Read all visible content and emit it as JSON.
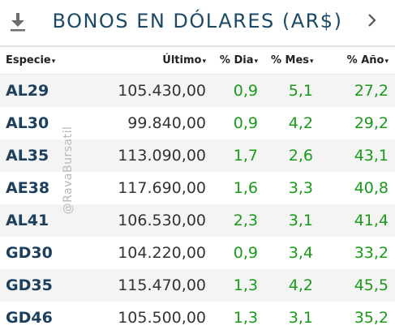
{
  "header": {
    "title": "BONOS EN DÓLARES (AR$)",
    "download_icon": "download-icon",
    "next_icon": "chevron-right-icon"
  },
  "table": {
    "columns": [
      {
        "label": "Especie",
        "sort_glyph": "▾"
      },
      {
        "label": "Último",
        "sort_glyph": "▾"
      },
      {
        "label": "% Dia",
        "sort_glyph": "▾"
      },
      {
        "label": "% Mes",
        "sort_glyph": "▾"
      },
      {
        "label": "% Año",
        "sort_glyph": "▾"
      }
    ],
    "rows": [
      {
        "ticker": "AL29",
        "last": "105.430,00",
        "day": "0,9",
        "month": "5,1",
        "year": "27,2"
      },
      {
        "ticker": "AL30",
        "last": "99.840,00",
        "day": "0,9",
        "month": "4,2",
        "year": "29,2"
      },
      {
        "ticker": "AL35",
        "last": "113.090,00",
        "day": "1,7",
        "month": "2,6",
        "year": "43,1"
      },
      {
        "ticker": "AE38",
        "last": "117.690,00",
        "day": "1,6",
        "month": "3,3",
        "year": "40,8"
      },
      {
        "ticker": "AL41",
        "last": "106.530,00",
        "day": "2,3",
        "month": "3,1",
        "year": "41,4"
      },
      {
        "ticker": "GD30",
        "last": "104.220,00",
        "day": "0,9",
        "month": "3,4",
        "year": "33,2"
      },
      {
        "ticker": "GD35",
        "last": "115.470,00",
        "day": "1,3",
        "month": "4,2",
        "year": "45,5"
      },
      {
        "ticker": "GD46",
        "last": "105.500,00",
        "day": "1,3",
        "month": "3,1",
        "year": "35,2"
      }
    ]
  },
  "watermark": "@RavaBursatil",
  "colors": {
    "title": "#1c4a66",
    "ticker": "#1c3f5e",
    "positive": "#1a9a1a",
    "stripe": "#f4f4f4"
  }
}
